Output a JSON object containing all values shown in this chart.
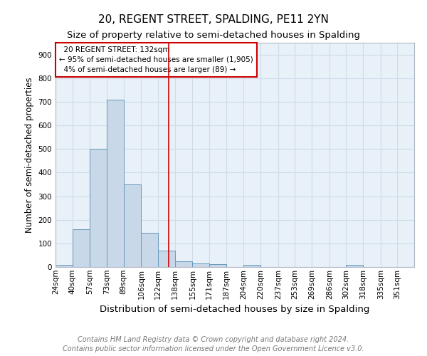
{
  "title": "20, REGENT STREET, SPALDING, PE11 2YN",
  "subtitle": "Size of property relative to semi-detached houses in Spalding",
  "xlabel": "Distribution of semi-detached houses by size in Spalding",
  "ylabel": "Number of semi-detached properties",
  "property_label": "20 REGENT STREET: 132sqm",
  "pct_smaller": 95,
  "count_smaller": "1,905",
  "pct_larger": 4,
  "count_larger": 89,
  "bin_labels": [
    "24sqm",
    "40sqm",
    "57sqm",
    "73sqm",
    "89sqm",
    "106sqm",
    "122sqm",
    "138sqm",
    "155sqm",
    "171sqm",
    "187sqm",
    "204sqm",
    "220sqm",
    "237sqm",
    "253sqm",
    "269sqm",
    "286sqm",
    "302sqm",
    "318sqm",
    "335sqm",
    "351sqm"
  ],
  "bin_edges": [
    24,
    40,
    57,
    73,
    89,
    106,
    122,
    138,
    155,
    171,
    187,
    204,
    220,
    237,
    253,
    269,
    286,
    302,
    318,
    335,
    351,
    367
  ],
  "bar_heights": [
    10,
    160,
    500,
    710,
    350,
    145,
    68,
    25,
    15,
    12,
    0,
    8,
    0,
    0,
    0,
    0,
    0,
    8,
    0,
    0,
    0
  ],
  "bar_color": "#c8d8e8",
  "bar_edge_color": "#6699bb",
  "vline_x": 132,
  "vline_color": "#cc0000",
  "ylim": [
    0,
    950
  ],
  "yticks": [
    0,
    100,
    200,
    300,
    400,
    500,
    600,
    700,
    800,
    900
  ],
  "grid_color": "#d0dce8",
  "bg_color": "#e8f0f8",
  "box_edge_color": "#cc0000",
  "footer_line1": "Contains HM Land Registry data © Crown copyright and database right 2024.",
  "footer_line2": "Contains public sector information licensed under the Open Government Licence v3.0.",
  "title_fontsize": 11,
  "subtitle_fontsize": 9.5,
  "xlabel_fontsize": 9.5,
  "ylabel_fontsize": 8.5,
  "footer_fontsize": 7,
  "tick_fontsize": 7.5,
  "annot_fontsize": 7.5
}
